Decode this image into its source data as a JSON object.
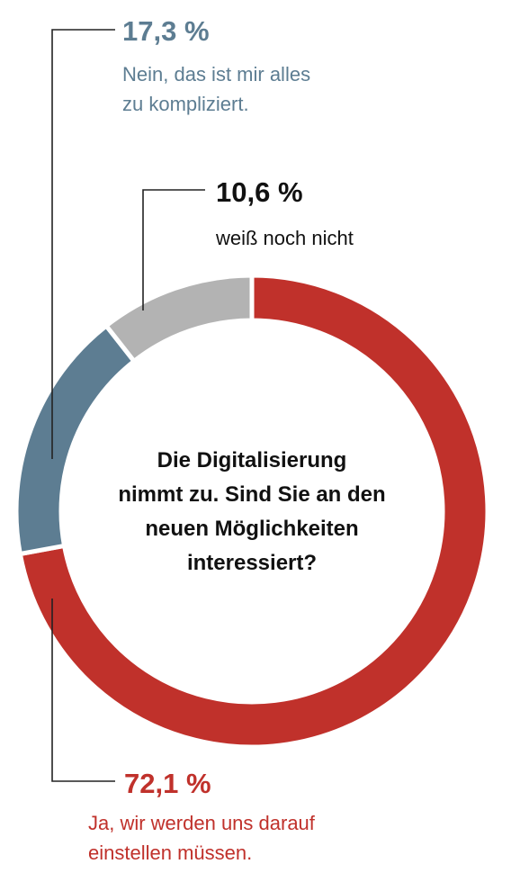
{
  "chart_data": {
    "type": "pie",
    "variant": "donut",
    "title": "Die Digitalisierung nimmt zu. Sind Sie an den neuen Möglichkeiten interessiert?",
    "title_lines": [
      "Die Digitalisierung",
      "nimmt zu. Sind Sie an den",
      "neuen Möglichkeiten",
      "interessiert?"
    ],
    "slices": [
      {
        "value": 72.1,
        "value_label": "72,1 %",
        "label_lines": [
          "Ja, wir werden uns darauf",
          "einstellen müssen."
        ],
        "color": "#c0312b"
      },
      {
        "value": 17.3,
        "value_label": "17,3 %",
        "label_lines": [
          "Nein, das ist mir alles",
          "zu kompliziert."
        ],
        "color": "#5d7d92"
      },
      {
        "value": 10.6,
        "value_label": "10,6 %",
        "label_lines": [
          "weiß noch nicht"
        ],
        "color": "#b3b3b3"
      }
    ],
    "value_label_colors": [
      "#c0312b",
      "#5d7d92",
      "#111111"
    ],
    "label_colors": [
      "#c0312b",
      "#5d7d92",
      "#111111"
    ]
  }
}
